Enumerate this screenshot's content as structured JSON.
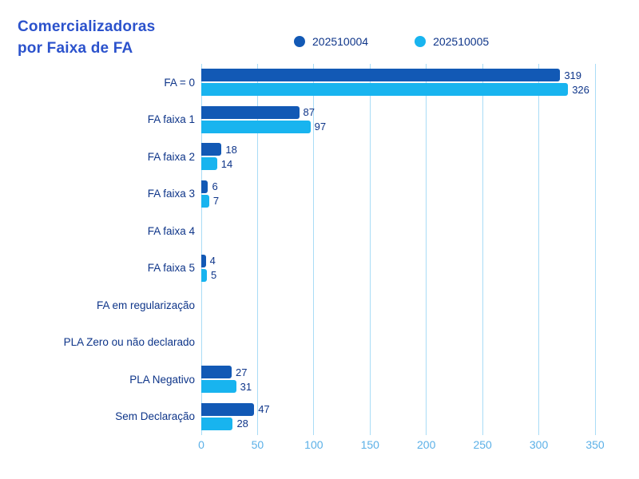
{
  "title": {
    "line1": "Comercializadoras",
    "line2": "por Faixa de FA"
  },
  "colors": {
    "series_dark_blue": "#1259b5",
    "series_cyan": "#18b4ef",
    "title_text": "#2b52cc",
    "label_text": "#0e3589",
    "tick_text": "#5bb0e7",
    "gridline": "#a9dcf6",
    "background": "#ffffff"
  },
  "chart_data": {
    "type": "bar",
    "orientation": "horizontal",
    "title": "Comercializadoras por Faixa de FA",
    "categories": [
      "FA = 0",
      "FA faixa 1",
      "FA faixa 2",
      "FA faixa 3",
      "FA faixa 4",
      "FA faixa 5",
      "FA em regularização",
      "PLA Zero ou não declarado",
      "PLA Negativo",
      "Sem Declaração"
    ],
    "series": [
      {
        "name": "202510004",
        "color": "#1259b5",
        "values": [
          319,
          87,
          18,
          6,
          0,
          4,
          0,
          0,
          27,
          47
        ]
      },
      {
        "name": "202510005",
        "color": "#18b4ef",
        "values": [
          326,
          97,
          14,
          7,
          0,
          5,
          0,
          0,
          31,
          28
        ]
      }
    ],
    "xlabel": "",
    "ylabel": "",
    "xlim": [
      0,
      350
    ],
    "xticks": [
      0,
      50,
      100,
      150,
      200,
      250,
      300,
      350
    ],
    "grid": true,
    "legend_position": "top",
    "value_labels": "shown for non-zero bars"
  }
}
